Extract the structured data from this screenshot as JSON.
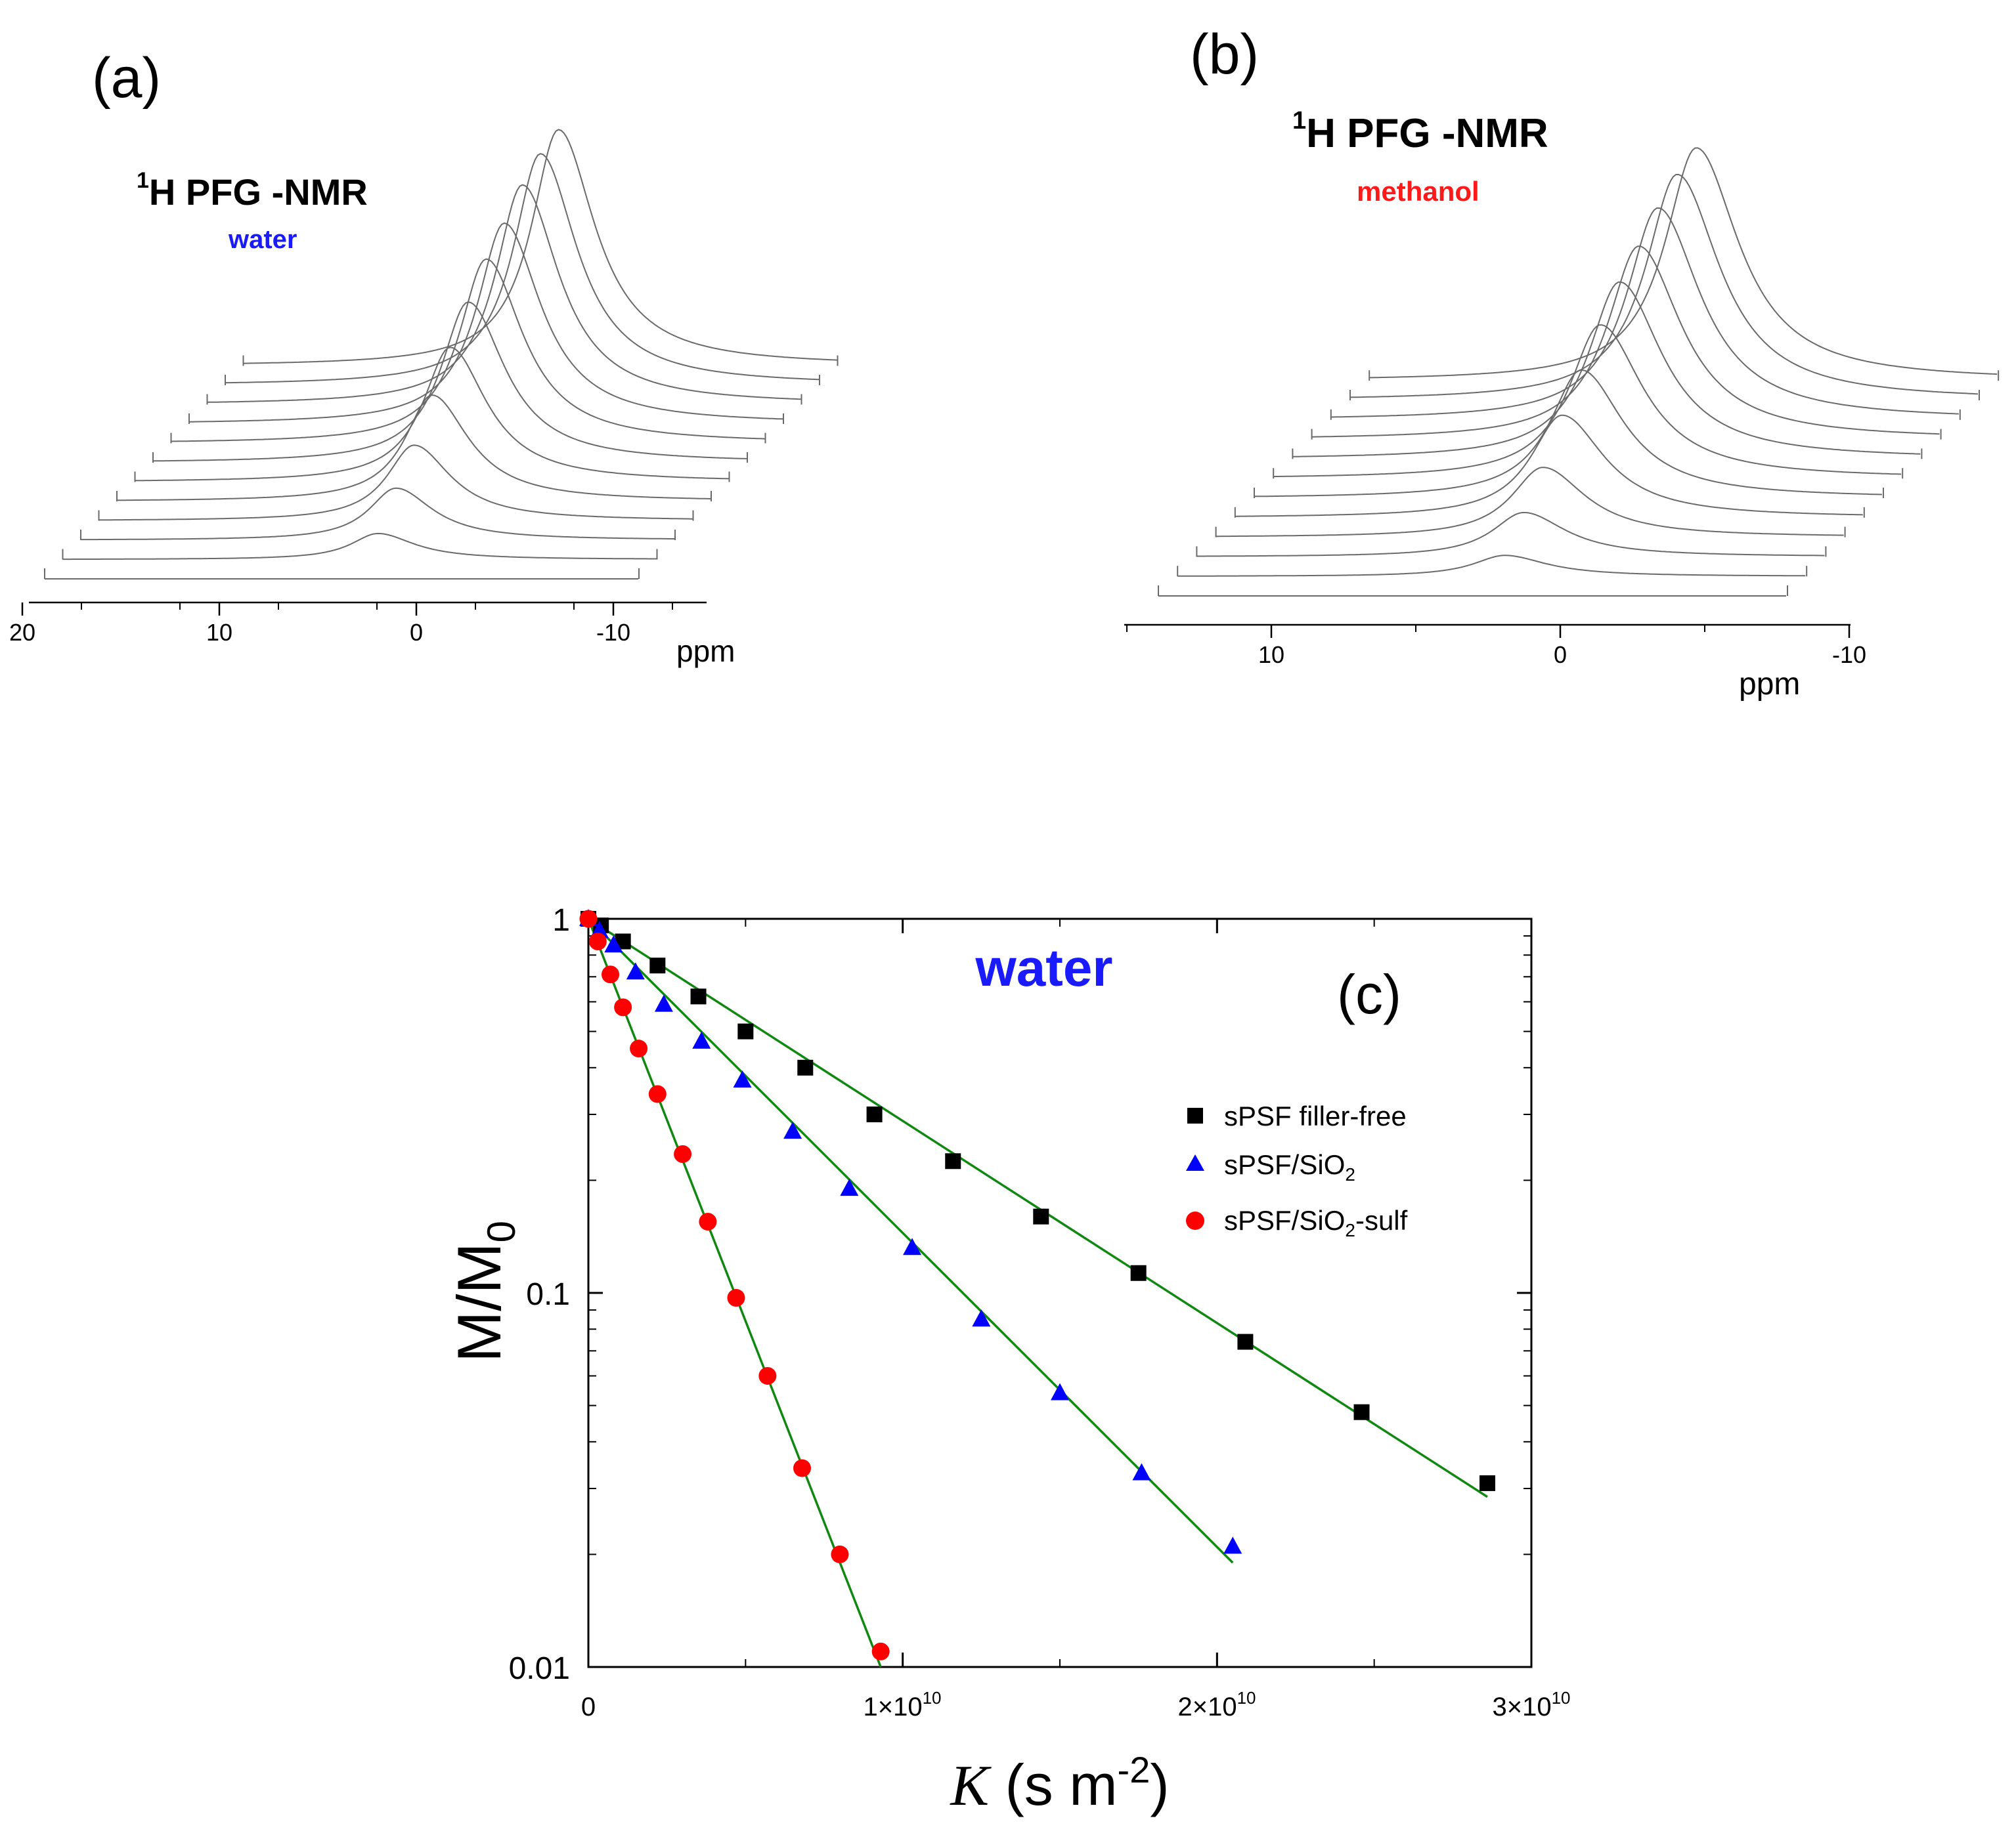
{
  "panel_a": {
    "label": "(a)",
    "nmr_title": {
      "sup": "1",
      "main": "H PFG -NMR"
    },
    "solvent": "water",
    "x_unit": "ppm",
    "x_ticks": [
      "20",
      "10",
      "0",
      "-10"
    ]
  },
  "panel_b": {
    "label": "(b)",
    "nmr_title": {
      "sup": "1",
      "main": "H PFG -NMR"
    },
    "solvent": "methanol",
    "x_unit": "ppm",
    "x_ticks": [
      "10",
      "0",
      "-10"
    ]
  },
  "panel_c": {
    "label": "(c)",
    "solvent": "water",
    "y_tick_labels": [
      "1",
      "0.1",
      "0.01"
    ],
    "x_tick_labels": [
      {
        "base": "0",
        "exp": ""
      },
      {
        "base": "1×10",
        "exp": "10"
      },
      {
        "base": "2×10",
        "exp": "10"
      },
      {
        "base": "3×10",
        "exp": "10"
      }
    ],
    "y_label": {
      "main": "M/M",
      "sub": "0"
    },
    "x_label": {
      "symbol": "K",
      "rest": " (s m",
      "sup": "-2",
      "close": ")"
    },
    "legend": [
      {
        "text": "sPSF filler-free",
        "sub": "",
        "after": ""
      },
      {
        "text": "sPSF/SiO",
        "sub": "2",
        "after": ""
      },
      {
        "text": "sPSF/SiO",
        "sub": "2",
        "after": "-sulf"
      }
    ]
  },
  "colors": {
    "water": "#1a1aff",
    "methanol": "#ff1a1a",
    "fit": "#118811",
    "filler_free": "#000000",
    "sio2": "#0000ff",
    "sio2_sulf": "#ff0000",
    "spectrum": "#6a6a6a"
  },
  "chart_data": [
    {
      "type": "line",
      "title": "1H PFG -NMR water",
      "xlabel": "ppm",
      "xlim": [
        20,
        -15
      ],
      "x_reversed": true,
      "series_description": "stacked spectra, peak height decreasing with gradient strength",
      "spectra_peak_ppm": 0,
      "relative_peak_heights": [
        0.11,
        0.22,
        0.32,
        0.45,
        0.57,
        0.68,
        0.78,
        0.85,
        0.93,
        0.98,
        1.0,
        1.0
      ]
    },
    {
      "type": "line",
      "title": "1H PFG -NMR methanol",
      "xlabel": "ppm",
      "xlim": [
        15,
        -10
      ],
      "x_reversed": true,
      "series_description": "stacked spectra, peak height decreasing with gradient strength",
      "spectra_peak_ppm": 0,
      "relative_peak_heights": [
        0.09,
        0.19,
        0.3,
        0.44,
        0.55,
        0.66,
        0.76,
        0.83,
        0.91,
        0.97,
        1.0,
        1.0
      ]
    },
    {
      "type": "scatter",
      "title": "water",
      "xlabel": "K (s m-2)",
      "ylabel": "M/M0",
      "xlim": [
        0,
        30000000000
      ],
      "ylim": [
        0.01,
        1
      ],
      "yscale": "log",
      "series": [
        {
          "name": "sPSF filler-free",
          "marker": "square",
          "x": [
            0,
            400000000,
            1100000000,
            2200000000,
            3500000000,
            5000000000,
            6900000000,
            9100000000,
            11600000000,
            14400000000,
            17500000000,
            20900000000,
            24600000000,
            28600000000
          ],
          "y": [
            1.0,
            0.96,
            0.87,
            0.75,
            0.62,
            0.5,
            0.4,
            0.3,
            0.225,
            0.16,
            0.113,
            0.074,
            0.048,
            0.031
          ],
          "fit": {
            "x": [
              0,
              28600000000
            ],
            "y": [
              1.0,
              0.0285
            ]
          }
        },
        {
          "name": "sPSF/SiO2",
          "marker": "triangle",
          "x": [
            0,
            350000000,
            800000000,
            1500000000,
            2400000000,
            3600000000,
            4900000000,
            6500000000,
            8300000000,
            10300000000,
            12500000000,
            15000000000,
            17600000000,
            20500000000
          ],
          "y": [
            1.0,
            0.93,
            0.85,
            0.72,
            0.59,
            0.47,
            0.37,
            0.27,
            0.19,
            0.132,
            0.085,
            0.054,
            0.033,
            0.021
          ],
          "fit": {
            "x": [
              0,
              20500000000
            ],
            "y": [
              1.0,
              0.019
            ]
          }
        },
        {
          "name": "sPSF/SiO2-sulf",
          "marker": "circle",
          "x": [
            0,
            300000000,
            700000000,
            1100000000,
            1600000000,
            2200000000,
            3000000000,
            3800000000,
            4700000000,
            5700000000,
            6800000000,
            8000000000,
            9300000000
          ],
          "y": [
            1.0,
            0.87,
            0.71,
            0.58,
            0.45,
            0.34,
            0.235,
            0.155,
            0.097,
            0.06,
            0.034,
            0.02,
            0.011
          ],
          "fit": {
            "x": [
              0,
              9300000000
            ],
            "y": [
              1.0,
              0.01
            ]
          }
        }
      ]
    }
  ]
}
